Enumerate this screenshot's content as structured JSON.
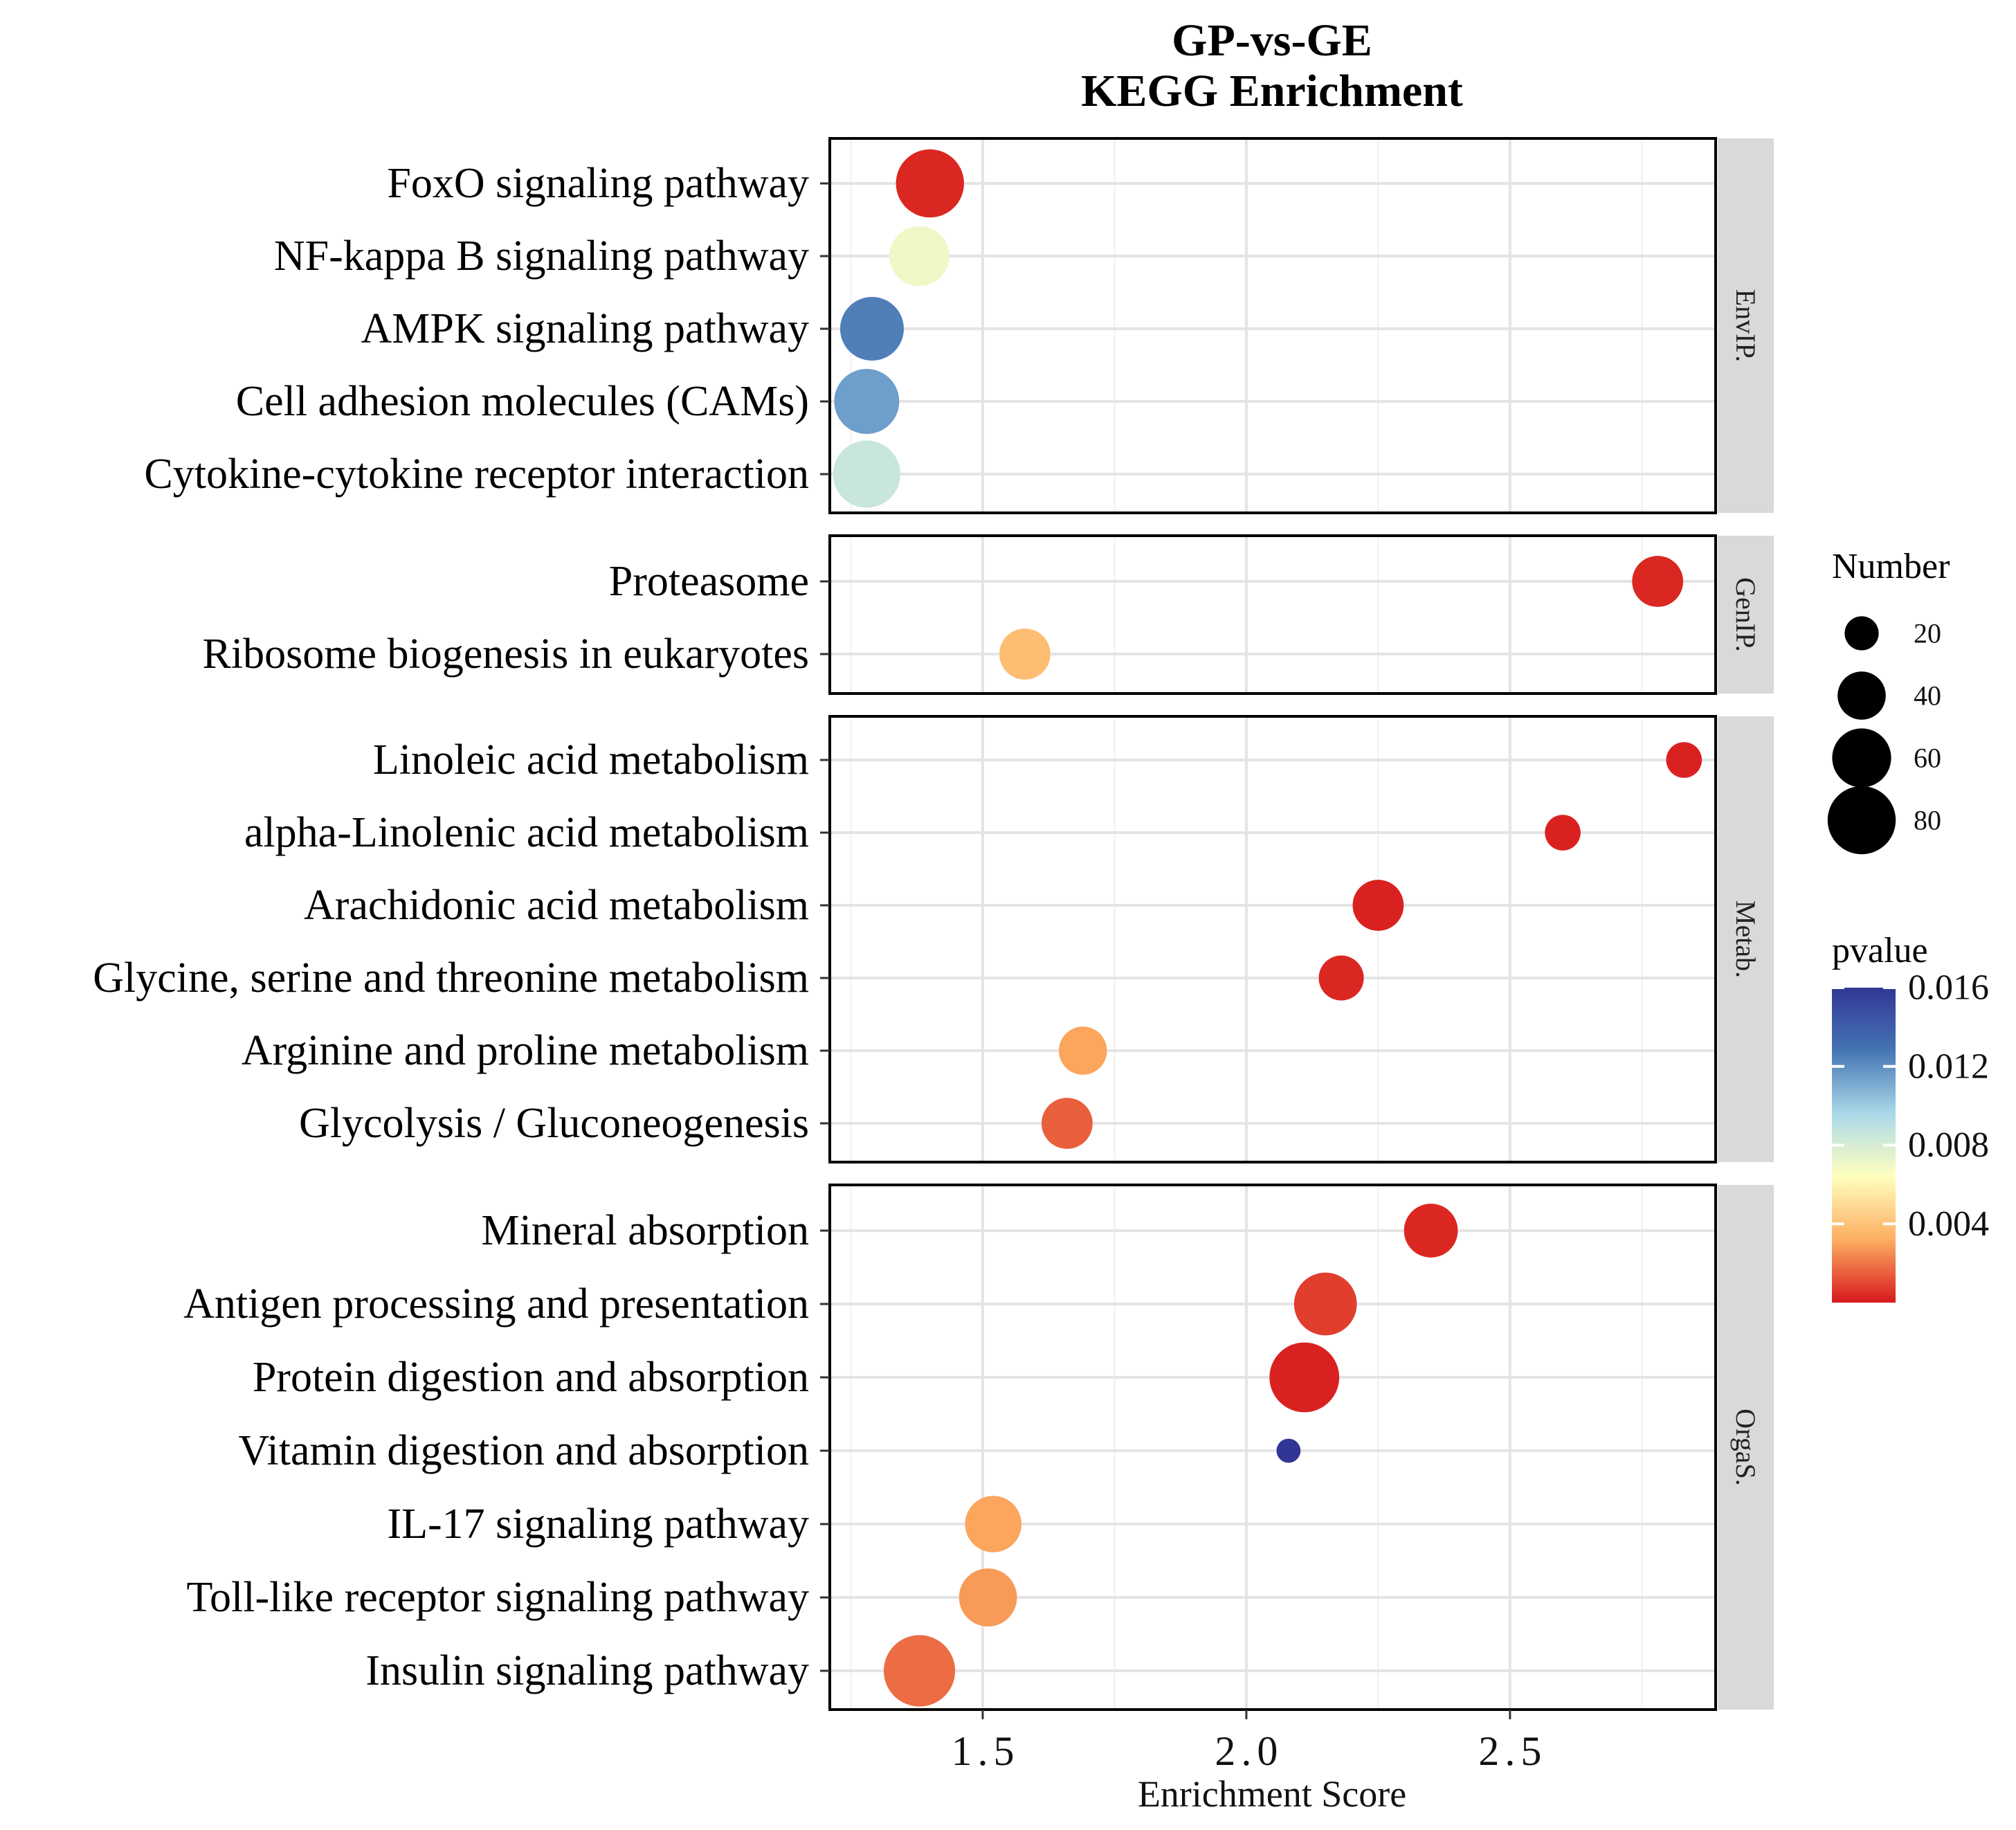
{
  "chart_data": {
    "type": "scatter",
    "title": "GP-vs-GE",
    "subtitle": "KEGG Enrichment",
    "xlabel": "Enrichment Score",
    "ylabel": "",
    "xlim": [
      1.21,
      2.89
    ],
    "xticks": [
      1.5,
      2.0,
      2.5
    ],
    "xtick_labels": [
      "1.5",
      "2.0",
      "2.5"
    ],
    "grid": true,
    "facets": [
      {
        "name": "EnvIP.",
        "points": [
          {
            "pathway": "FoxO signaling pathway",
            "score": 1.4,
            "number": 80,
            "pvalue": 0.0003
          },
          {
            "pathway": "NF-kappa B signaling pathway",
            "score": 1.38,
            "number": 62,
            "pvalue": 0.007
          },
          {
            "pathway": "AMPK signaling pathway",
            "score": 1.29,
            "number": 70,
            "pvalue": 0.0125
          },
          {
            "pathway": "Cell adhesion molecules (CAMs)",
            "score": 1.28,
            "number": 73,
            "pvalue": 0.0115
          },
          {
            "pathway": "Cytokine-cytokine receptor interaction",
            "score": 1.28,
            "number": 78,
            "pvalue": 0.0085
          }
        ]
      },
      {
        "name": "GenIP.",
        "points": [
          {
            "pathway": "Proteasome",
            "score": 2.78,
            "number": 45,
            "pvalue": 0.0003
          },
          {
            "pathway": "Ribosome biogenesis in eukaryotes",
            "score": 1.58,
            "number": 45,
            "pvalue": 0.0038
          }
        ]
      },
      {
        "name": "Metab.",
        "points": [
          {
            "pathway": "Linoleic acid metabolism",
            "score": 2.83,
            "number": 22,
            "pvalue": 0.0002
          },
          {
            "pathway": "alpha-Linolenic acid metabolism",
            "score": 2.6,
            "number": 22,
            "pvalue": 0.0002
          },
          {
            "pathway": "Arachidonic acid metabolism",
            "score": 2.25,
            "number": 45,
            "pvalue": 0.0002
          },
          {
            "pathway": "Glycine, serine and threonine metabolism",
            "score": 2.18,
            "number": 35,
            "pvalue": 0.0003
          },
          {
            "pathway": "Arginine and proline metabolism",
            "score": 1.69,
            "number": 40,
            "pvalue": 0.003
          },
          {
            "pathway": "Glycolysis / Gluconeogenesis",
            "score": 1.66,
            "number": 45,
            "pvalue": 0.0015
          }
        ]
      },
      {
        "name": "OrgaS.",
        "points": [
          {
            "pathway": "Mineral absorption",
            "score": 2.35,
            "number": 50,
            "pvalue": 0.0003
          },
          {
            "pathway": "Antigen processing and presentation",
            "score": 2.15,
            "number": 68,
            "pvalue": 0.0008
          },
          {
            "pathway": "Protein digestion and absorption",
            "score": 2.11,
            "number": 84,
            "pvalue": 0.0002
          },
          {
            "pathway": "Vitamin digestion and absorption",
            "score": 2.08,
            "number": 10,
            "pvalue": 0.016
          },
          {
            "pathway": "IL-17 signaling pathway",
            "score": 1.52,
            "number": 55,
            "pvalue": 0.003
          },
          {
            "pathway": "Toll-like receptor signaling pathway",
            "score": 1.51,
            "number": 58,
            "pvalue": 0.0028
          },
          {
            "pathway": "Insulin signaling pathway",
            "score": 1.38,
            "number": 88,
            "pvalue": 0.0018
          }
        ]
      }
    ],
    "size_legend": {
      "title": "Number",
      "values": [
        20,
        40,
        60,
        80
      ],
      "labels": [
        "20",
        "40",
        "60",
        "80"
      ]
    },
    "color_legend": {
      "title": "pvalue",
      "range": [
        0.0,
        0.016
      ],
      "ticks": [
        0.016,
        0.012,
        0.008,
        0.004
      ],
      "tick_labels": [
        "0.016",
        "0.012",
        "0.008",
        "0.004"
      ],
      "palette": [
        "#d7191c",
        "#fdae61",
        "#ffffbf",
        "#abd9e9",
        "#4575b4",
        "#313695"
      ]
    }
  }
}
